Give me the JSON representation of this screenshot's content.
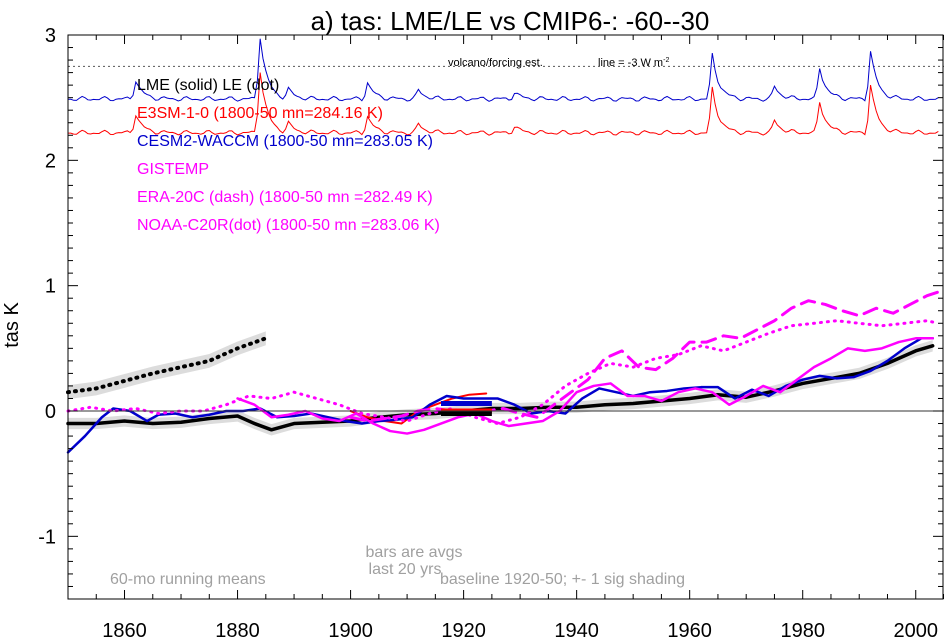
{
  "chart_data": {
    "type": "line",
    "title": "a) tas: LME/LE vs CMIP6-: -60--30",
    "ylabel": "tas K",
    "xlabel": "",
    "xlim": [
      1850,
      2005
    ],
    "ylim": [
      -1.5,
      3.0
    ],
    "x_ticks": [
      1860,
      1880,
      1900,
      1920,
      1940,
      1960,
      1980,
      2000
    ],
    "y_ticks": [
      -1,
      0,
      1,
      2,
      3
    ],
    "y_tick_labels": [
      "-1",
      "0",
      "1",
      "2",
      "3"
    ],
    "zero_line": true,
    "legend_placement": "top-left",
    "legend": [
      {
        "text": "LME (solid)   LE (dot)",
        "color": "#000000"
      },
      {
        "text": "E3SM-1-0 (1800-50 mn=284.16 K)",
        "color": "#ff0000"
      },
      {
        "text": "CESM2-WACCM (1800-50 mn=283.05 K)",
        "color": "#0000cc"
      },
      {
        "text": "GISTEMP",
        "color": "#ff00ff"
      },
      {
        "text": "ERA-20C (dash) (1800-50 mn =282.49 K)",
        "color": "#ff00ff"
      },
      {
        "text": "NOAA-C20R(dot) (1800-50 mn =283.06 K)",
        "color": "#ff00ff"
      }
    ],
    "annotations": {
      "volcano": "volcano/forcing est.",
      "line_ref": "line = -3 W m",
      "line_ref_sup": "-2",
      "running": "60-mo running means",
      "bars1": "bars are avgs",
      "bars2": "last 20 yrs",
      "baseline": "baseline 1920-50; +- 1 sig shading"
    },
    "forcing_ref_y": 2.75,
    "forcing_peaks": [
      {
        "x": 1862,
        "h": 0.15
      },
      {
        "x": 1884,
        "h": 0.5
      },
      {
        "x": 1889,
        "h": 0.07
      },
      {
        "x": 1903,
        "h": 0.13
      },
      {
        "x": 1912,
        "h": 0.07
      },
      {
        "x": 1929,
        "h": 0.05
      },
      {
        "x": 1964,
        "h": 0.35
      },
      {
        "x": 1975,
        "h": 0.1
      },
      {
        "x": 1983,
        "h": 0.25
      },
      {
        "x": 1992,
        "h": 0.38
      }
    ],
    "series": [
      {
        "name": "LME (solid)",
        "color": "#000000",
        "style": "solid",
        "width": 3.5,
        "x": [
          1850,
          1855,
          1860,
          1865,
          1870,
          1875,
          1880,
          1883,
          1886,
          1890,
          1895,
          1900,
          1905,
          1910,
          1915,
          1920,
          1925,
          1930,
          1935,
          1940,
          1945,
          1950,
          1955,
          1960,
          1965,
          1970,
          1975,
          1980,
          1985,
          1990,
          1995,
          2000,
          2003
        ],
        "y": [
          -0.1,
          -0.1,
          -0.08,
          -0.1,
          -0.09,
          -0.06,
          -0.04,
          -0.1,
          -0.15,
          -0.1,
          -0.09,
          -0.08,
          -0.05,
          -0.03,
          -0.02,
          0.0,
          0.02,
          0.02,
          0.03,
          0.03,
          0.05,
          0.06,
          0.08,
          0.1,
          0.13,
          0.11,
          0.16,
          0.22,
          0.26,
          0.3,
          0.38,
          0.48,
          0.52
        ]
      },
      {
        "name": "LE (dot)",
        "color": "#000000",
        "style": "dot",
        "width": 4,
        "x": [
          1850,
          1855,
          1860,
          1865,
          1870,
          1875,
          1880,
          1885
        ],
        "y": [
          0.15,
          0.18,
          0.24,
          0.3,
          0.35,
          0.4,
          0.5,
          0.58
        ]
      },
      {
        "name": "E3SM-1-0",
        "color": "#ff0000",
        "style": "solid",
        "width": 2,
        "x": [
          1900,
          1903,
          1906,
          1909,
          1912,
          1915,
          1918,
          1921,
          1924
        ],
        "y": [
          0.0,
          -0.05,
          -0.08,
          -0.1,
          0.0,
          0.05,
          0.1,
          0.13,
          0.14
        ]
      },
      {
        "name": "CESM2-WACCM",
        "color": "#0000cc",
        "style": "solid",
        "width": 2.5,
        "x": [
          1850,
          1853,
          1856,
          1858,
          1861,
          1864,
          1866,
          1869,
          1872,
          1875,
          1878,
          1881,
          1884,
          1887,
          1890,
          1893,
          1896,
          1899,
          1902,
          1905,
          1908,
          1911,
          1914,
          1917,
          1920,
          1923,
          1926,
          1929,
          1932,
          1935,
          1938,
          1941,
          1944,
          1947,
          1950,
          1953,
          1956,
          1959,
          1962,
          1965,
          1968,
          1971,
          1974,
          1977,
          1980,
          1983,
          1986,
          1989,
          1992,
          1995,
          1998,
          2001,
          2003
        ],
        "y": [
          -0.33,
          -0.2,
          -0.05,
          0.02,
          0.0,
          -0.08,
          -0.03,
          -0.02,
          -0.05,
          -0.03,
          0.0,
          0.0,
          0.02,
          -0.05,
          -0.04,
          -0.02,
          -0.05,
          -0.08,
          -0.1,
          -0.08,
          -0.07,
          -0.05,
          0.05,
          0.12,
          0.1,
          0.1,
          0.1,
          0.05,
          -0.02,
          0.0,
          -0.02,
          0.1,
          0.18,
          0.15,
          0.12,
          0.15,
          0.16,
          0.18,
          0.19,
          0.19,
          0.1,
          0.17,
          0.12,
          0.2,
          0.25,
          0.28,
          0.26,
          0.27,
          0.32,
          0.4,
          0.5,
          0.58,
          0.58
        ]
      },
      {
        "name": "GISTEMP",
        "color": "#ff00ff",
        "style": "solid",
        "width": 2.5,
        "x": [
          1880,
          1883,
          1886,
          1889,
          1892,
          1895,
          1898,
          1901,
          1904,
          1907,
          1910,
          1913,
          1916,
          1919,
          1922,
          1925,
          1928,
          1931,
          1934,
          1937,
          1940,
          1943,
          1946,
          1949,
          1952,
          1955,
          1958,
          1961,
          1964,
          1967,
          1970,
          1973,
          1976,
          1979,
          1982,
          1985,
          1988,
          1991,
          1994,
          1997,
          2000,
          2003
        ],
        "y": [
          0.1,
          0.05,
          -0.05,
          -0.03,
          0.0,
          -0.06,
          -0.08,
          -0.02,
          -0.1,
          -0.16,
          -0.18,
          -0.15,
          -0.1,
          -0.05,
          -0.02,
          -0.08,
          -0.12,
          -0.1,
          -0.08,
          0.0,
          0.15,
          0.2,
          0.22,
          0.12,
          0.12,
          0.08,
          0.15,
          0.18,
          0.15,
          0.05,
          0.12,
          0.2,
          0.15,
          0.25,
          0.35,
          0.42,
          0.5,
          0.48,
          0.5,
          0.55,
          0.58,
          0.58
        ]
      },
      {
        "name": "ERA-20C (dash)",
        "color": "#ff00ff",
        "style": "dash",
        "width": 3,
        "x": [
          1900,
          1903,
          1906,
          1909,
          1912,
          1915,
          1918,
          1921,
          1924,
          1927,
          1930,
          1933,
          1936,
          1939,
          1942,
          1945,
          1948,
          1951,
          1954,
          1957,
          1960,
          1963,
          1966,
          1969,
          1972,
          1975,
          1978,
          1981,
          1984,
          1987,
          1990,
          1993,
          1996,
          1999,
          2002,
          2004
        ],
        "y": [
          -0.05,
          -0.08,
          -0.06,
          -0.04,
          0.0,
          0.02,
          0.0,
          -0.02,
          0.0,
          0.02,
          -0.02,
          -0.05,
          0.05,
          0.15,
          0.25,
          0.42,
          0.48,
          0.35,
          0.33,
          0.42,
          0.55,
          0.55,
          0.6,
          0.58,
          0.65,
          0.72,
          0.82,
          0.88,
          0.85,
          0.8,
          0.76,
          0.82,
          0.78,
          0.85,
          0.92,
          0.95
        ]
      },
      {
        "name": "NOAA-C20R(dot)",
        "color": "#ff00ff",
        "style": "dot",
        "width": 3,
        "x": [
          1850,
          1854,
          1858,
          1862,
          1866,
          1870,
          1874,
          1878,
          1882,
          1886,
          1890,
          1894,
          1898,
          1902,
          1906,
          1910,
          1914,
          1918,
          1922,
          1926,
          1930,
          1934,
          1938,
          1942,
          1946,
          1950,
          1954,
          1958,
          1962,
          1966,
          1970,
          1974,
          1978,
          1982,
          1986,
          1990,
          1994,
          1998,
          2002,
          2004
        ],
        "y": [
          0.0,
          0.03,
          0.0,
          0.02,
          -0.02,
          0.0,
          0.0,
          0.05,
          0.12,
          0.1,
          0.15,
          0.1,
          0.05,
          -0.02,
          -0.05,
          -0.08,
          -0.02,
          0.02,
          -0.05,
          -0.1,
          -0.05,
          0.05,
          0.2,
          0.3,
          0.38,
          0.35,
          0.42,
          0.45,
          0.52,
          0.48,
          0.55,
          0.62,
          0.68,
          0.7,
          0.72,
          0.7,
          0.68,
          0.7,
          0.72,
          0.7
        ]
      }
    ],
    "bars": [
      {
        "color": "#0000cc",
        "x": [
          1916,
          1925
        ],
        "y": 0.06
      },
      {
        "color": "#ff0000",
        "x": [
          1916,
          1925
        ],
        "y": 0.0
      },
      {
        "color": "#000000",
        "x": [
          1916,
          1925
        ],
        "y": -0.02
      }
    ]
  }
}
